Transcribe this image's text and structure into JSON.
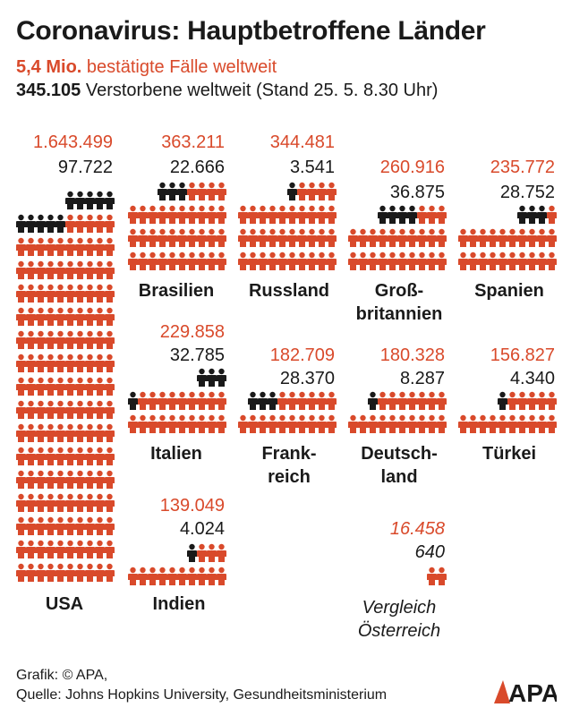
{
  "title": "Coronavirus: Hauptbetroffene Länder",
  "subtitle_cases_value": "5,4 Mio.",
  "subtitle_cases_text": " bestätigte Fälle weltweit",
  "subtitle_deaths_value": "345.105",
  "subtitle_deaths_text": " Verstorbene weltweit (Stand 25. 5. 8.30 Uhr)",
  "colors": {
    "cases": "#d94a2b",
    "deaths": "#1a1a1a"
  },
  "chart_data": {
    "type": "pictogram",
    "series": [
      {
        "name": "bestätigte Fälle",
        "values": [
          1643499,
          363211,
          344481,
          260916,
          235772,
          229858,
          182709,
          180328,
          156827,
          139049,
          16458
        ]
      },
      {
        "name": "Verstorbene",
        "values": [
          97722,
          22666,
          3541,
          36875,
          28752,
          32785,
          28370,
          8287,
          4340,
          4024,
          640
        ]
      }
    ],
    "countries": [
      {
        "id": "usa",
        "label": "USA",
        "cases": "1.643.499",
        "deaths": "97.722",
        "cases_value": 1643499,
        "deaths_value": 97722
      },
      {
        "id": "brasilien",
        "label": "Brasilien",
        "cases": "363.211",
        "deaths": "22.666",
        "cases_value": 363211,
        "deaths_value": 22666
      },
      {
        "id": "russland",
        "label": "Russland",
        "cases": "344.481",
        "deaths": "3.541",
        "cases_value": 344481,
        "deaths_value": 3541
      },
      {
        "id": "grossbritannien",
        "label_line1": "Groß-",
        "label_line2": "britannien",
        "cases": "260.916",
        "deaths": "36.875",
        "cases_value": 260916,
        "deaths_value": 36875
      },
      {
        "id": "spanien",
        "label": "Spanien",
        "cases": "235.772",
        "deaths": "28.752",
        "cases_value": 235772,
        "deaths_value": 28752
      },
      {
        "id": "italien",
        "label": "Italien",
        "cases": "229.858",
        "deaths": "32.785",
        "cases_value": 229858,
        "deaths_value": 32785
      },
      {
        "id": "frankreich",
        "label_line1": "Frank-",
        "label_line2": "reich",
        "cases": "182.709",
        "deaths": "28.370",
        "cases_value": 182709,
        "deaths_value": 28370
      },
      {
        "id": "deutschland",
        "label_line1": "Deutsch-",
        "label_line2": "land",
        "cases": "180.328",
        "deaths": "8.287",
        "cases_value": 180328,
        "deaths_value": 8287
      },
      {
        "id": "tuerkei",
        "label": "Türkei",
        "cases": "156.827",
        "deaths": "4.340",
        "cases_value": 156827,
        "deaths_value": 4340
      },
      {
        "id": "indien",
        "label": "Indien",
        "cases": "139.049",
        "deaths": "4.024",
        "cases_value": 139049,
        "deaths_value": 4024
      },
      {
        "id": "oesterreich",
        "label_line1": "Vergleich",
        "label_line2": "Österreich",
        "cases": "16.458",
        "deaths": "640",
        "cases_value": 16458,
        "deaths_value": 640
      }
    ]
  },
  "footer": {
    "line1": "Grafik: © APA,",
    "line2": "Quelle: Johns Hopkins University, Gesundheitsministerium"
  },
  "logo_text": "APA"
}
